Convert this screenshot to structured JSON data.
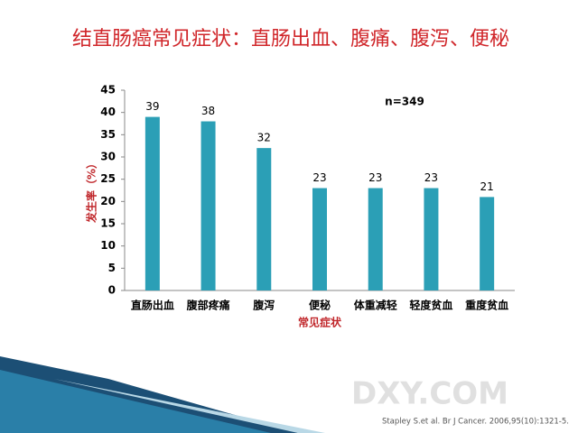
{
  "chart_data": {
    "type": "bar",
    "title": "结直肠癌常见症状：直肠出血、腹痛、腹泻、便秘",
    "annotation": "n=349",
    "x_label": "常见症状",
    "y_label": "发生率（%）",
    "categories": [
      "直肠出血",
      "腹部疼痛",
      "腹泻",
      "便秘",
      "体重减轻",
      "轻度贫血",
      "重度贫血"
    ],
    "values": [
      39,
      38,
      32,
      23,
      23,
      23,
      21
    ],
    "color": "#2b9fb6",
    "ylim": [
      0,
      45
    ],
    "yticks": [
      0,
      5,
      10,
      15,
      20,
      25,
      30,
      35,
      40,
      45
    ],
    "grid": false,
    "source": "Stapley S.et al. Br J Cancer. 2006,95(10):1321-5.",
    "watermark": "DXY.COM"
  }
}
